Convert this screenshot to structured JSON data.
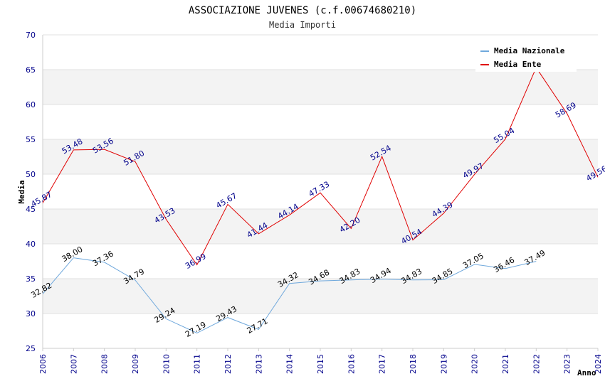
{
  "chart_data": {
    "type": "line",
    "title": "ASSOCIAZIONE JUVENES (c.f.00674680210)",
    "subtitle": "Media Importi",
    "xlabel": "Anno",
    "ylabel": "Media",
    "ylim": [
      25,
      70
    ],
    "yticks": [
      25,
      30,
      35,
      40,
      45,
      50,
      55,
      60,
      65,
      70
    ],
    "x": [
      "2006",
      "2007",
      "2008",
      "2009",
      "2010",
      "2011",
      "2012",
      "2013",
      "2014",
      "2015",
      "2016",
      "2017",
      "2018",
      "2019",
      "2020",
      "2021",
      "2022",
      "2023",
      "2024"
    ],
    "grid": true,
    "legend_position": "top-right",
    "series": [
      {
        "name": "Media Nazionale",
        "color": "#6fa8dc",
        "label_color": "#000000",
        "values": [
          32.82,
          38.0,
          37.36,
          34.79,
          29.24,
          27.19,
          29.43,
          27.71,
          34.32,
          34.68,
          34.83,
          34.94,
          34.83,
          34.85,
          37.05,
          36.46,
          37.49,
          null,
          null
        ],
        "labels": [
          "32.82",
          "38.00",
          "37.36",
          "34.79",
          "29.24",
          "27.19",
          "29.43",
          "27.71",
          "34.32",
          "34.68",
          "34.83",
          "34.94",
          "34.83",
          "34.85",
          "37.05",
          "36.46",
          "37.49",
          null,
          null
        ]
      },
      {
        "name": "Media Ente",
        "color": "#e00000",
        "label_color": "#00008b",
        "values": [
          45.87,
          53.48,
          53.56,
          51.8,
          43.53,
          36.99,
          45.67,
          41.44,
          44.14,
          47.33,
          42.2,
          52.54,
          40.54,
          44.39,
          49.97,
          55.04,
          65.3,
          58.69,
          49.56
        ],
        "labels": [
          "45.87",
          "53.48",
          "53.56",
          "51.80",
          "43.53",
          "36.99",
          "45.67",
          "41.44",
          "44.14",
          "47.33",
          "42.20",
          "52.54",
          "40.54",
          "44.39",
          "49.97",
          "55.04",
          null,
          "58.69",
          "49.56"
        ]
      }
    ]
  }
}
